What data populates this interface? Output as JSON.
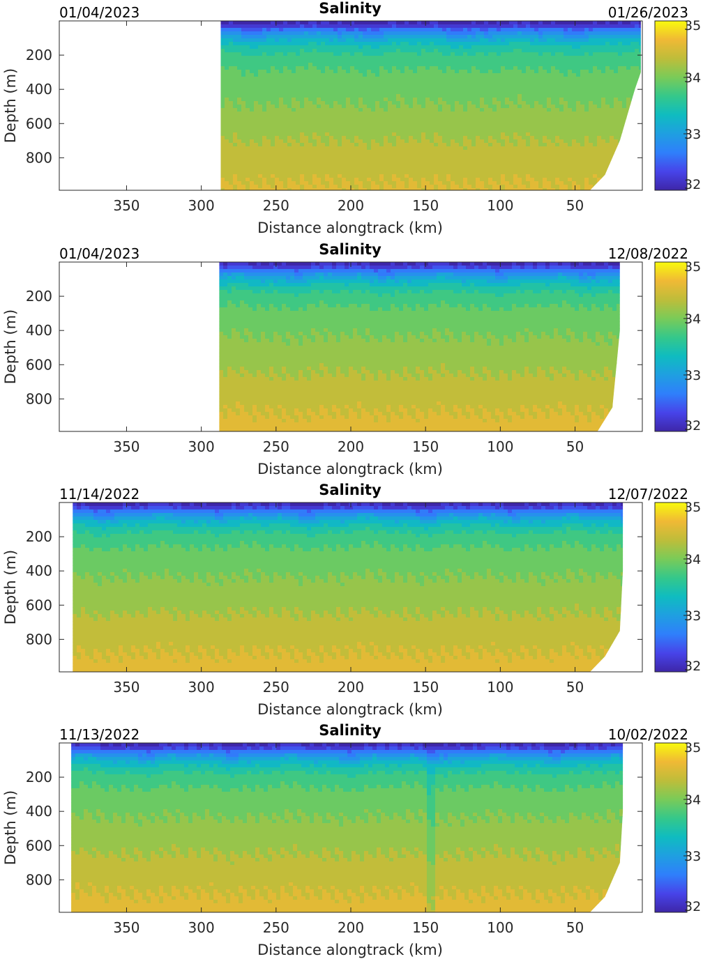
{
  "colormap": {
    "name": "parula",
    "stops": [
      "#3e26a8",
      "#4744e9",
      "#2f7ffb",
      "#1f9fe1",
      "#0fbcc0",
      "#35c88a",
      "#7acb58",
      "#bebd3a",
      "#f0b935",
      "#f8fa0d"
    ]
  },
  "chart_data": [
    {
      "type": "heatmap",
      "title": "Salinity",
      "start_date": "01/04/2023",
      "end_date": "01/26/2023",
      "xlabel": "Distance alongtrack (km)",
      "ylabel": "Depth (m)",
      "xlim": [
        395,
        5
      ],
      "x_reversed": true,
      "ylim": [
        0,
        990
      ],
      "y_reversed": true,
      "xticks": [
        350,
        300,
        250,
        200,
        150,
        100,
        50
      ],
      "yticks": [
        200,
        400,
        600,
        800
      ],
      "colorbar": {
        "clim": [
          32,
          35
        ],
        "ticks": [
          32,
          33,
          34,
          35
        ]
      },
      "coverage_km": [
        287,
        6
      ],
      "coverage_profile": [
        [
          80,
          990
        ],
        [
          40,
          990
        ],
        [
          30,
          900
        ],
        [
          20,
          700
        ],
        [
          10,
          400
        ],
        [
          6,
          300
        ]
      ],
      "salinity_profile": {
        "depth_m": [
          0,
          30,
          60,
          100,
          150,
          200,
          300,
          400,
          600,
          800,
          990
        ],
        "salinity": [
          32.0,
          32.25,
          32.7,
          33.1,
          33.45,
          33.65,
          33.85,
          33.95,
          34.15,
          34.35,
          34.5
        ]
      },
      "vertical_anomaly": null
    },
    {
      "type": "heatmap",
      "title": "Salinity",
      "start_date": "01/04/2023",
      "end_date": "12/08/2022",
      "xlabel": "Distance alongtrack (km)",
      "ylabel": "Depth (m)",
      "xlim": [
        395,
        5
      ],
      "x_reversed": true,
      "ylim": [
        0,
        990
      ],
      "y_reversed": true,
      "xticks": [
        350,
        300,
        250,
        200,
        150,
        100,
        50
      ],
      "yticks": [
        200,
        400,
        600,
        800
      ],
      "colorbar": {
        "clim": [
          32,
          35
        ],
        "ticks": [
          32,
          33,
          34,
          35
        ]
      },
      "coverage_km": [
        288,
        20
      ],
      "coverage_profile": [
        [
          60,
          990
        ],
        [
          35,
          990
        ],
        [
          25,
          850
        ],
        [
          20,
          400
        ],
        [
          20,
          0
        ]
      ],
      "salinity_profile": {
        "depth_m": [
          0,
          30,
          60,
          100,
          150,
          200,
          300,
          400,
          600,
          800,
          990
        ],
        "salinity": [
          32.0,
          32.3,
          32.75,
          33.15,
          33.5,
          33.7,
          33.9,
          34.0,
          34.2,
          34.4,
          34.55
        ]
      },
      "vertical_anomaly": null
    },
    {
      "type": "heatmap",
      "title": "Salinity",
      "start_date": "11/14/2022",
      "end_date": "12/07/2022",
      "xlabel": "Distance alongtrack (km)",
      "ylabel": "Depth (m)",
      "xlim": [
        395,
        5
      ],
      "x_reversed": true,
      "ylim": [
        0,
        990
      ],
      "y_reversed": true,
      "xticks": [
        350,
        300,
        250,
        200,
        150,
        100,
        50
      ],
      "yticks": [
        200,
        400,
        600,
        800
      ],
      "colorbar": {
        "clim": [
          32,
          35
        ],
        "ticks": [
          32,
          33,
          34,
          35
        ]
      },
      "coverage_km": [
        386,
        18
      ],
      "coverage_profile": [
        [
          60,
          990
        ],
        [
          40,
          990
        ],
        [
          30,
          900
        ],
        [
          20,
          750
        ],
        [
          18,
          400
        ],
        [
          18,
          0
        ]
      ],
      "salinity_profile": {
        "depth_m": [
          0,
          30,
          60,
          100,
          150,
          200,
          300,
          400,
          600,
          800,
          990
        ],
        "salinity": [
          32.0,
          32.3,
          32.75,
          33.15,
          33.5,
          33.7,
          33.9,
          34.0,
          34.2,
          34.4,
          34.55
        ]
      },
      "vertical_anomaly": null
    },
    {
      "type": "heatmap",
      "title": "Salinity",
      "start_date": "11/13/2022",
      "end_date": "10/02/2022",
      "xlabel": "Distance alongtrack (km)",
      "ylabel": "Depth (m)",
      "xlim": [
        395,
        5
      ],
      "x_reversed": true,
      "ylim": [
        0,
        990
      ],
      "y_reversed": true,
      "xticks": [
        350,
        300,
        250,
        200,
        150,
        100,
        50
      ],
      "yticks": [
        200,
        400,
        600,
        800
      ],
      "colorbar": {
        "clim": [
          32,
          35
        ],
        "ticks": [
          32,
          33,
          34,
          35
        ]
      },
      "coverage_km": [
        387,
        18
      ],
      "coverage_profile": [
        [
          60,
          990
        ],
        [
          40,
          990
        ],
        [
          30,
          900
        ],
        [
          20,
          700
        ],
        [
          18,
          400
        ],
        [
          18,
          0
        ]
      ],
      "salinity_profile": {
        "depth_m": [
          0,
          30,
          60,
          100,
          150,
          200,
          300,
          400,
          600,
          800,
          990
        ],
        "salinity": [
          32.0,
          32.3,
          32.75,
          33.15,
          33.5,
          33.7,
          33.9,
          34.0,
          34.2,
          34.4,
          34.55
        ]
      },
      "vertical_anomaly": {
        "x_km": [
          148,
          143
        ],
        "salinity_shift": -0.25
      }
    }
  ]
}
